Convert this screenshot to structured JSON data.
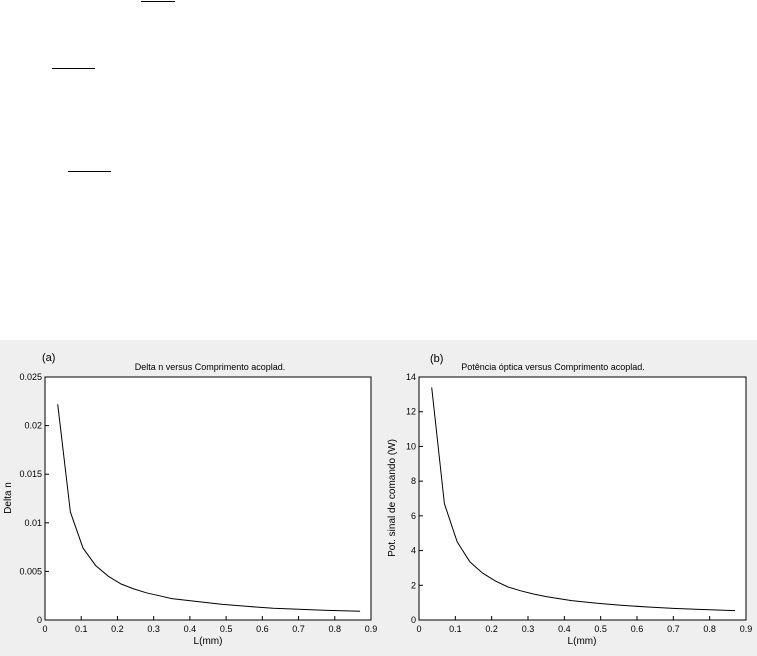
{
  "fraction_bars": [
    {
      "name": "fraction-bar-1"
    },
    {
      "name": "fraction-bar-2"
    },
    {
      "name": "fraction-bar-3"
    }
  ],
  "chart_data": [
    {
      "type": "line",
      "panel_label": "(a)",
      "title": "Delta n versus Comprimento acoplad.",
      "xlabel": "L(mm)",
      "ylabel": "Delta n",
      "xlim": [
        0,
        0.9
      ],
      "ylim": [
        0,
        0.025
      ],
      "xticks": [
        0,
        0.1,
        0.2,
        0.3,
        0.4,
        0.5,
        0.6,
        0.7,
        0.8,
        0.9
      ],
      "xtick_labels": [
        "0",
        "0.1",
        "0.2",
        "0.3",
        "0.4",
        "0.5",
        "0.6",
        "0.7",
        "0.8",
        "0.9"
      ],
      "yticks": [
        0,
        0.005,
        0.01,
        0.015,
        0.02,
        0.025
      ],
      "ytick_labels": [
        "0",
        "0.005",
        "0.01",
        "0.015",
        "0.02",
        "0.025"
      ],
      "grid": false,
      "series": [
        {
          "x": [
            0.035,
            0.07,
            0.105,
            0.14,
            0.175,
            0.21,
            0.245,
            0.28,
            0.315,
            0.35,
            0.42,
            0.49,
            0.56,
            0.63,
            0.7,
            0.77,
            0.87
          ],
          "y": [
            0.0222,
            0.0111,
            0.0074,
            0.0056,
            0.0045,
            0.0037,
            0.0032,
            0.0028,
            0.0025,
            0.0022,
            0.0019,
            0.0016,
            0.0014,
            0.0012,
            0.0011,
            0.001,
            0.0009
          ]
        }
      ]
    },
    {
      "type": "line",
      "panel_label": "(b)",
      "title": "Potência óptica versus Comprimento acoplad.",
      "xlabel": "L(mm)",
      "ylabel": "Pot. sinal de comando (W)",
      "xlim": [
        0,
        0.9
      ],
      "ylim": [
        0,
        14
      ],
      "xticks": [
        0,
        0.1,
        0.2,
        0.3,
        0.4,
        0.5,
        0.6,
        0.7,
        0.8,
        0.9
      ],
      "xtick_labels": [
        "0",
        "0.1",
        "0.2",
        "0.3",
        "0.4",
        "0.5",
        "0.6",
        "0.7",
        "0.8",
        "0.9"
      ],
      "yticks": [
        0,
        2,
        4,
        6,
        8,
        10,
        12,
        14
      ],
      "ytick_labels": [
        "0",
        "2",
        "4",
        "6",
        "8",
        "10",
        "12",
        "14"
      ],
      "grid": false,
      "series": [
        {
          "x": [
            0.035,
            0.07,
            0.105,
            0.14,
            0.175,
            0.21,
            0.245,
            0.28,
            0.315,
            0.35,
            0.42,
            0.49,
            0.56,
            0.63,
            0.7,
            0.77,
            0.87
          ],
          "y": [
            13.4,
            6.7,
            4.5,
            3.35,
            2.7,
            2.25,
            1.9,
            1.68,
            1.5,
            1.35,
            1.12,
            0.96,
            0.84,
            0.75,
            0.67,
            0.61,
            0.54
          ]
        }
      ]
    }
  ]
}
